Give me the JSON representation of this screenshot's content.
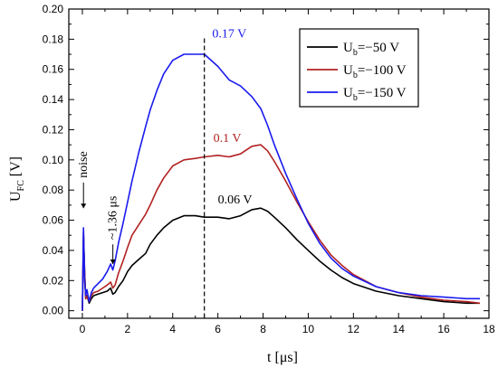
{
  "chart_data": {
    "type": "line",
    "xlabel": "t [μs]",
    "ylabel": "U",
    "ylabel_sub": "FC",
    "ylabel_unit": " [V]",
    "xlim": [
      -0.6,
      18
    ],
    "ylim": [
      -0.005,
      0.2
    ],
    "xticks": [
      0,
      2,
      4,
      6,
      8,
      10,
      12,
      14,
      16,
      18
    ],
    "yticks": [
      0.0,
      0.02,
      0.04,
      0.06,
      0.08,
      0.1,
      0.12,
      0.14,
      0.16,
      0.18,
      0.2
    ],
    "ytick_labels": [
      "0.00",
      "0.02",
      "0.04",
      "0.06",
      "0.08",
      "0.10",
      "0.12",
      "0.14",
      "0.16",
      "0.18",
      "0.20"
    ],
    "legend_position": "top-right",
    "series": [
      {
        "name": "U_b=-50 V",
        "legend_main": "U",
        "legend_sub": "b",
        "legend_rest": "=−50 V",
        "color": "#000000",
        "x": [
          0,
          0.05,
          0.1,
          0.15,
          0.2,
          0.3,
          0.4,
          0.5,
          0.7,
          0.9,
          1.1,
          1.25,
          1.35,
          1.45,
          1.6,
          1.8,
          2.0,
          2.2,
          2.5,
          2.8,
          3.0,
          3.3,
          3.6,
          4.0,
          4.5,
          5.0,
          5.4,
          6.0,
          6.5,
          7.0,
          7.5,
          7.9,
          8.2,
          8.5,
          9.0,
          9.5,
          10.0,
          10.5,
          11.0,
          11.5,
          12.0,
          13.0,
          14.0,
          15.0,
          16.0,
          17.0,
          17.6
        ],
        "y": [
          0.0,
          0.05,
          0.025,
          0.008,
          0.01,
          0.005,
          0.008,
          0.01,
          0.011,
          0.012,
          0.013,
          0.015,
          0.011,
          0.012,
          0.016,
          0.02,
          0.026,
          0.03,
          0.034,
          0.038,
          0.044,
          0.05,
          0.055,
          0.06,
          0.063,
          0.063,
          0.062,
          0.062,
          0.061,
          0.063,
          0.067,
          0.068,
          0.066,
          0.062,
          0.055,
          0.047,
          0.04,
          0.033,
          0.027,
          0.022,
          0.018,
          0.013,
          0.01,
          0.008,
          0.006,
          0.005,
          0.005
        ]
      },
      {
        "name": "U_b=-100 V",
        "legend_main": "U",
        "legend_sub": "b",
        "legend_rest": "=−100 V",
        "color": "#b22222",
        "x": [
          0,
          0.05,
          0.1,
          0.15,
          0.2,
          0.3,
          0.4,
          0.5,
          0.7,
          0.9,
          1.1,
          1.25,
          1.35,
          1.45,
          1.6,
          1.8,
          2.0,
          2.2,
          2.5,
          2.8,
          3.0,
          3.3,
          3.6,
          4.0,
          4.5,
          5.0,
          5.4,
          6.0,
          6.5,
          7.0,
          7.5,
          7.9,
          8.2,
          8.5,
          9.0,
          9.5,
          10.0,
          10.5,
          11.0,
          11.5,
          12.0,
          13.0,
          14.0,
          15.0,
          16.0,
          17.0,
          17.6
        ],
        "y": [
          0.0,
          0.052,
          0.025,
          0.008,
          0.01,
          0.006,
          0.01,
          0.012,
          0.013,
          0.015,
          0.017,
          0.019,
          0.015,
          0.017,
          0.025,
          0.033,
          0.042,
          0.05,
          0.057,
          0.064,
          0.07,
          0.08,
          0.088,
          0.096,
          0.1,
          0.101,
          0.102,
          0.103,
          0.102,
          0.104,
          0.109,
          0.11,
          0.106,
          0.099,
          0.086,
          0.072,
          0.059,
          0.047,
          0.037,
          0.03,
          0.024,
          0.016,
          0.012,
          0.009,
          0.007,
          0.006,
          0.005
        ]
      },
      {
        "name": "U_b=-150 V",
        "legend_main": "U",
        "legend_sub": "b",
        "legend_rest": "=−150 V",
        "color": "#1a1aee",
        "x": [
          0,
          0.05,
          0.1,
          0.15,
          0.2,
          0.3,
          0.4,
          0.5,
          0.7,
          0.9,
          1.1,
          1.25,
          1.35,
          1.45,
          1.6,
          1.8,
          2.0,
          2.2,
          2.5,
          2.8,
          3.0,
          3.3,
          3.6,
          4.0,
          4.5,
          5.0,
          5.4,
          6.0,
          6.5,
          7.0,
          7.5,
          7.9,
          8.2,
          8.5,
          9.0,
          9.5,
          10.0,
          10.5,
          11.0,
          11.5,
          12.0,
          13.0,
          14.0,
          15.0,
          16.0,
          17.0,
          17.6
        ],
        "y": [
          0.0,
          0.055,
          0.02,
          0.01,
          0.014,
          0.006,
          0.012,
          0.015,
          0.018,
          0.021,
          0.026,
          0.031,
          0.027,
          0.033,
          0.045,
          0.058,
          0.072,
          0.086,
          0.105,
          0.122,
          0.133,
          0.146,
          0.157,
          0.166,
          0.17,
          0.17,
          0.17,
          0.162,
          0.153,
          0.149,
          0.142,
          0.134,
          0.123,
          0.11,
          0.091,
          0.074,
          0.058,
          0.045,
          0.035,
          0.028,
          0.023,
          0.016,
          0.012,
          0.01,
          0.009,
          0.008,
          0.008
        ]
      }
    ],
    "annotations": [
      {
        "text": "0.17 V",
        "x": 5.75,
        "y": 0.181,
        "color": "#1a1aee"
      },
      {
        "text": "0.1 V",
        "x": 5.8,
        "y": 0.112,
        "color": "#b22222"
      },
      {
        "text": "0.06 V",
        "x": 6.0,
        "y": 0.071,
        "color": "#000000"
      },
      {
        "text": "noise",
        "x": 0.05,
        "y": 0.088,
        "color": "#000000",
        "rotate": -90
      },
      {
        "text": "~1.36 μs",
        "x": 1.35,
        "y": 0.047,
        "color": "#000000",
        "rotate": -90
      }
    ],
    "vline_x": 5.4,
    "grid": false
  }
}
